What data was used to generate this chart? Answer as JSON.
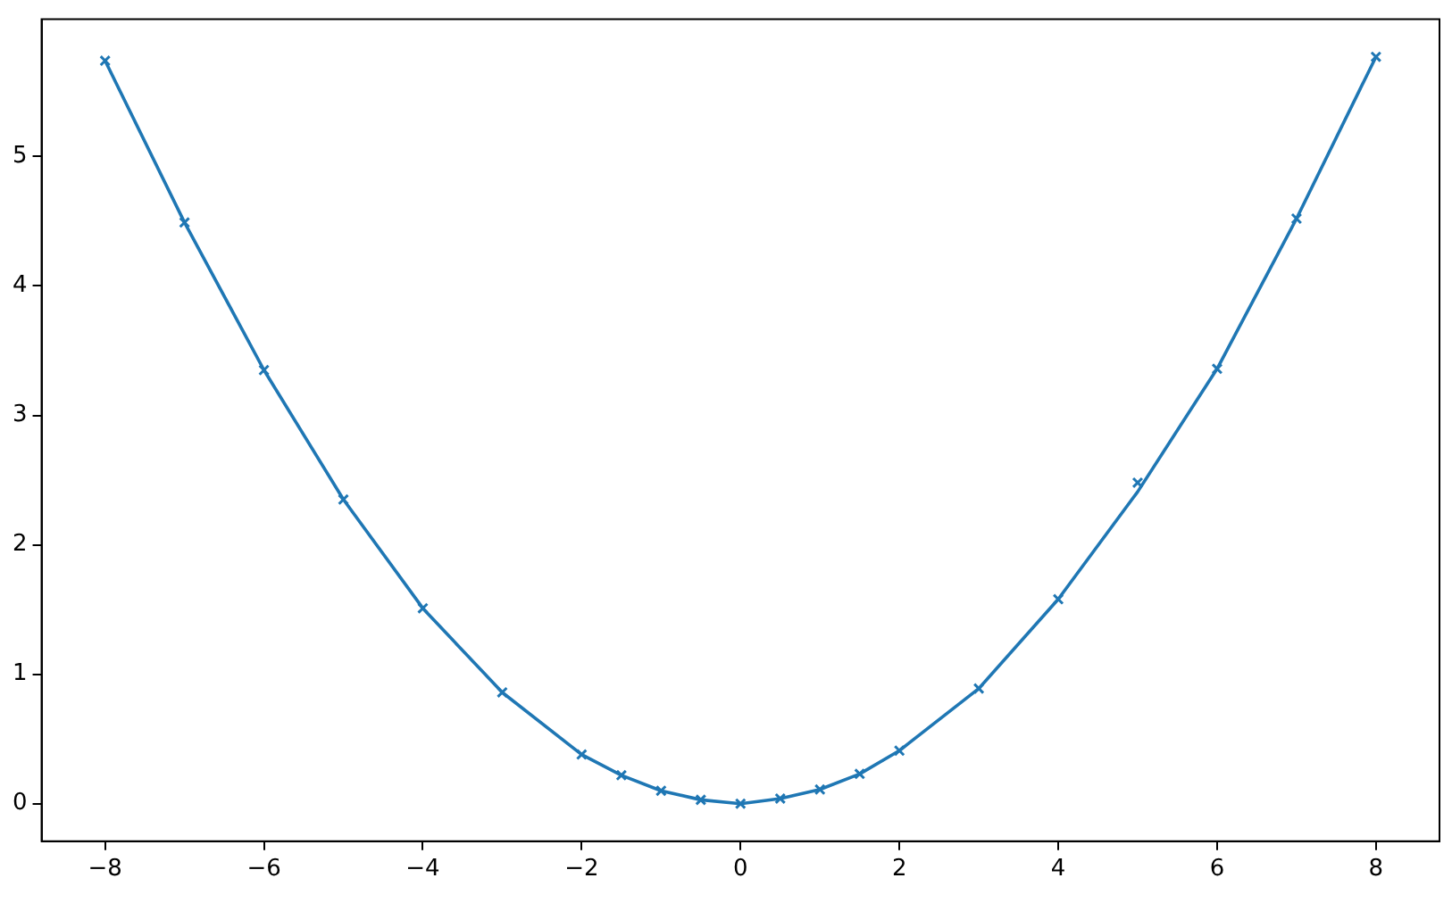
{
  "chart_data": {
    "type": "line",
    "x": [
      -8,
      -7,
      -6,
      -5,
      -4,
      -3,
      -2,
      -1.5,
      -1,
      -0.5,
      0,
      0.5,
      1,
      1.5,
      2,
      3,
      4,
      5,
      6,
      7,
      8
    ],
    "series": [
      {
        "color": "#1f77b4",
        "marker": "none",
        "values": [
          5.74,
          4.49,
          3.35,
          2.35,
          1.51,
          0.86,
          0.38,
          0.22,
          0.1,
          0.03,
          0,
          0.04,
          0.11,
          0.23,
          0.41,
          0.89,
          1.58,
          2.41,
          3.36,
          4.52,
          5.77
        ]
      },
      {
        "type": "scatter",
        "color": "#1f77b4",
        "marker": "cross",
        "values": [
          5.74,
          4.49,
          3.35,
          2.35,
          1.51,
          0.86,
          0.38,
          0.22,
          0.1,
          0.03,
          0,
          0.04,
          0.11,
          0.23,
          0.41,
          0.89,
          1.58,
          2.48,
          3.36,
          4.52,
          5.77
        ]
      }
    ],
    "xlim": [
      -8.8,
      8.8
    ],
    "xticks": [
      {
        "value": -8,
        "label": "−8"
      },
      {
        "value": -6,
        "label": "−6"
      },
      {
        "value": -4,
        "label": "−4"
      },
      {
        "value": -2,
        "label": "−2"
      },
      0,
      2,
      4,
      6,
      8
    ],
    "ylim": [
      -0.29,
      6.06
    ],
    "yticks": [
      0,
      1,
      2,
      3,
      4,
      5
    ],
    "grid": false,
    "legend": false
  }
}
